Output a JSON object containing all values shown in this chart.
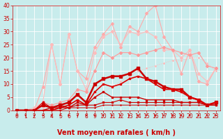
{
  "xlabel": "Vent moyen/en rafales ( km/h )",
  "xlim": [
    -0.5,
    23.5
  ],
  "ylim": [
    0,
    40
  ],
  "yticks": [
    0,
    5,
    10,
    15,
    20,
    25,
    30,
    35,
    40
  ],
  "xticks": [
    0,
    1,
    2,
    3,
    4,
    5,
    6,
    7,
    8,
    9,
    10,
    11,
    12,
    13,
    14,
    15,
    16,
    17,
    18,
    19,
    20,
    21,
    22,
    23
  ],
  "bg_color": "#c8ecec",
  "grid_color": "#ffffff",
  "lines": [
    {
      "x": [
        0,
        1,
        2,
        3,
        4,
        5,
        6,
        7,
        8,
        9,
        10,
        11,
        12,
        13,
        14,
        15,
        16,
        17,
        18,
        19,
        20,
        21,
        22,
        23
      ],
      "y": [
        0,
        0,
        0,
        9,
        25,
        10,
        29,
        15,
        12,
        24,
        29,
        33,
        24,
        32,
        30,
        37,
        40,
        28,
        23,
        14,
        23,
        11,
        10,
        16
      ],
      "color": "#ffaaaa",
      "lw": 0.8,
      "marker": "D",
      "ms": 2.0,
      "alpha": 1.0
    },
    {
      "x": [
        0,
        1,
        2,
        3,
        4,
        5,
        6,
        7,
        8,
        9,
        10,
        11,
        12,
        13,
        14,
        15,
        16,
        17,
        18,
        19,
        20,
        21,
        22,
        23
      ],
      "y": [
        0,
        0,
        1,
        3,
        25,
        10,
        29,
        15,
        8,
        22,
        28,
        30,
        25,
        30,
        29,
        30,
        28,
        23,
        23,
        20,
        23,
        14,
        11,
        16
      ],
      "color": "#ffbbbb",
      "lw": 0.8,
      "marker": "D",
      "ms": 2.0,
      "alpha": 1.0
    },
    {
      "x": [
        0,
        1,
        2,
        3,
        4,
        5,
        6,
        7,
        8,
        9,
        10,
        11,
        12,
        13,
        14,
        15,
        16,
        17,
        18,
        19,
        20,
        21,
        22,
        23
      ],
      "y": [
        0,
        0,
        0,
        3,
        2,
        3,
        4,
        8,
        7,
        15,
        22,
        20,
        22,
        22,
        21,
        22,
        23,
        24,
        23,
        22,
        21,
        22,
        17,
        16
      ],
      "color": "#ff9999",
      "lw": 0.8,
      "marker": "D",
      "ms": 2.0,
      "alpha": 1.0
    },
    {
      "x": [
        0,
        1,
        2,
        3,
        4,
        5,
        6,
        7,
        8,
        9,
        10,
        11,
        12,
        13,
        14,
        15,
        16,
        17,
        18,
        19,
        20,
        21,
        22,
        23
      ],
      "y": [
        0,
        0,
        0,
        1,
        1,
        2,
        3,
        3,
        4,
        5,
        7,
        9,
        11,
        13,
        15,
        16,
        17,
        18,
        19,
        19,
        20,
        20,
        18,
        15
      ],
      "color": "#ffbbbb",
      "lw": 0.7,
      "marker": ".",
      "ms": 2.0,
      "alpha": 1.0,
      "ls": "dotted"
    },
    {
      "x": [
        0,
        1,
        2,
        3,
        4,
        5,
        6,
        7,
        8,
        9,
        10,
        11,
        12,
        13,
        14,
        15,
        16,
        17,
        18,
        19,
        20,
        21,
        22,
        23
      ],
      "y": [
        0,
        0,
        0,
        2,
        1,
        2,
        3,
        6,
        3,
        10,
        12,
        13,
        13,
        14,
        16,
        12,
        11,
        9,
        8,
        8,
        5,
        4,
        2,
        3
      ],
      "color": "#cc0000",
      "lw": 1.8,
      "marker": "s",
      "ms": 2.5,
      "alpha": 1.0
    },
    {
      "x": [
        0,
        1,
        2,
        3,
        4,
        5,
        6,
        7,
        8,
        9,
        10,
        11,
        12,
        13,
        14,
        15,
        16,
        17,
        18,
        19,
        20,
        21,
        22,
        23
      ],
      "y": [
        0,
        0,
        0,
        0,
        0,
        1,
        2,
        4,
        2,
        7,
        10,
        9,
        10,
        12,
        13,
        12,
        10,
        8,
        8,
        7,
        5,
        4,
        2,
        3
      ],
      "color": "#dd0000",
      "lw": 1.2,
      "marker": "s",
      "ms": 2.0,
      "alpha": 1.0
    },
    {
      "x": [
        0,
        1,
        2,
        3,
        4,
        5,
        6,
        7,
        8,
        9,
        10,
        11,
        12,
        13,
        14,
        15,
        16,
        17,
        18,
        19,
        20,
        21,
        22,
        23
      ],
      "y": [
        0,
        0,
        0,
        0,
        1,
        1,
        1,
        3,
        2,
        5,
        7,
        5,
        5,
        5,
        5,
        4,
        4,
        4,
        4,
        3,
        3,
        3,
        2,
        2
      ],
      "color": "#cc0000",
      "lw": 1.0,
      "marker": "s",
      "ms": 1.5,
      "alpha": 1.0
    },
    {
      "x": [
        0,
        1,
        2,
        3,
        4,
        5,
        6,
        7,
        8,
        9,
        10,
        11,
        12,
        13,
        14,
        15,
        16,
        17,
        18,
        19,
        20,
        21,
        22,
        23
      ],
      "y": [
        0,
        0,
        0,
        3,
        1,
        2,
        1,
        2,
        2,
        2,
        3,
        3,
        4,
        3,
        3,
        3,
        3,
        3,
        3,
        3,
        3,
        3,
        2,
        2
      ],
      "color": "#cc0000",
      "lw": 0.8,
      "marker": "s",
      "ms": 1.5,
      "alpha": 1.0
    },
    {
      "x": [
        0,
        1,
        2,
        3,
        4,
        5,
        6,
        7,
        8,
        9,
        10,
        11,
        12,
        13,
        14,
        15,
        16,
        17,
        18,
        19,
        20,
        21,
        22,
        23
      ],
      "y": [
        0,
        0,
        0,
        0,
        0,
        0,
        1,
        1,
        1,
        1,
        2,
        2,
        2,
        2,
        2,
        2,
        2,
        2,
        2,
        2,
        2,
        2,
        2,
        2
      ],
      "color": "#cc0000",
      "lw": 0.7,
      "marker": ".",
      "ms": 1.5,
      "alpha": 1.0
    }
  ],
  "arrow_color": "#cc0000",
  "xlabel_color": "#cc0000",
  "xlabel_fontsize": 7,
  "tick_color": "#cc0000",
  "tick_fontsize": 5.5
}
